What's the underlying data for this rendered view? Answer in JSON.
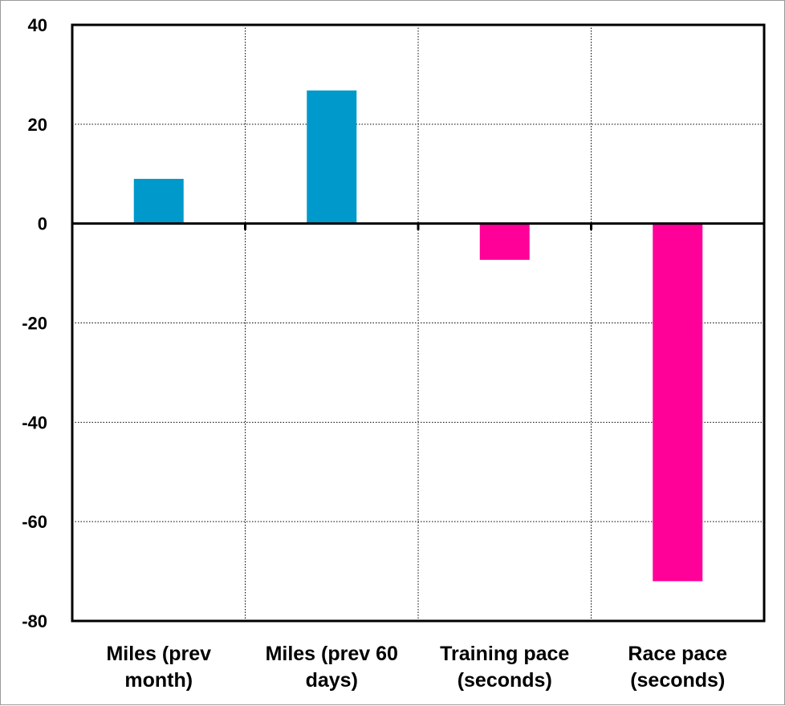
{
  "chart_data": {
    "type": "bar",
    "title": "",
    "xlabel": "",
    "ylabel": "",
    "categories": [
      [
        "Miles (prev",
        "month)"
      ],
      [
        "Miles (prev 60",
        "days)"
      ],
      [
        "Training pace",
        "(seconds)"
      ],
      [
        "Race pace",
        "(seconds)"
      ]
    ],
    "values": [
      9,
      26.8,
      -7.3,
      -72
    ],
    "bar_colors": [
      "#0099cc",
      "#0099cc",
      "#ff0099",
      "#ff0099"
    ],
    "ylim": [
      -80,
      40
    ],
    "yticks": [
      40,
      20,
      0,
      -20,
      -40,
      -60,
      -80
    ],
    "grid": true,
    "legend": "none"
  }
}
